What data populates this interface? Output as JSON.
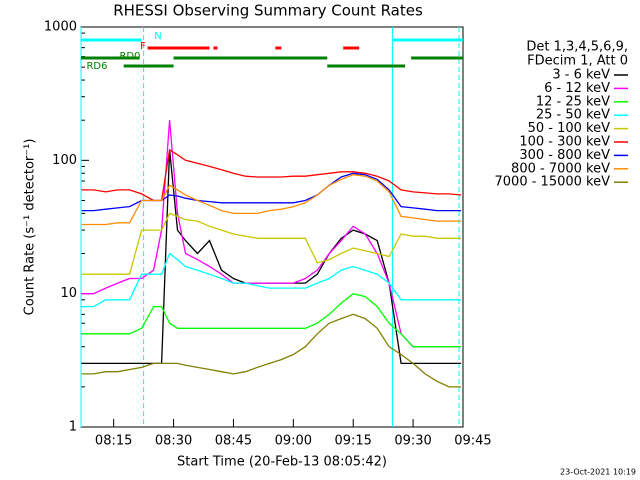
{
  "chart_data": {
    "type": "line",
    "title": "RHESSI Observing Summary Count Rates",
    "x_label": "Start Time (20-Feb-13 08:05:42)",
    "y_label": "Count Rate (s⁻¹ detector⁻¹)",
    "legend_header": [
      "Det 1,3,4,5,6,9,",
      "FDecim 1, Att 0"
    ],
    "footer": "23-Oct-2021 10:19",
    "log_y": true,
    "xlim": [
      "08:06:49",
      "09:42:30"
    ],
    "xticks": [
      "08:15",
      "08:30",
      "08:45",
      "09:00",
      "09:15",
      "09:30",
      "09:45"
    ],
    "ylim": [
      1,
      1000
    ],
    "yticks": [
      1,
      10,
      100,
      1000
    ],
    "x": [
      "08:07",
      "08:10",
      "08:13",
      "08:16",
      "08:19",
      "08:22",
      "08:25",
      "08:27",
      "08:29",
      "08:31",
      "08:33",
      "08:36",
      "08:39",
      "08:42",
      "08:45",
      "08:48",
      "08:51",
      "08:54",
      "08:57",
      "09:00",
      "09:03",
      "09:06",
      "09:09",
      "09:12",
      "09:15",
      "09:18",
      "09:21",
      "09:24",
      "09:27",
      "09:30",
      "09:33",
      "09:36",
      "09:39",
      "09:42"
    ],
    "series": [
      {
        "name": "3 - 6 keV",
        "color": "#000000",
        "values": [
          3,
          3,
          3,
          3,
          3,
          3,
          3,
          3,
          120,
          30,
          25,
          20,
          25,
          15,
          13,
          12,
          12,
          12,
          12,
          12,
          12,
          14,
          20,
          26,
          30,
          28,
          25,
          12,
          3,
          3,
          3,
          3,
          3,
          3
        ]
      },
      {
        "name": "6 - 12 keV",
        "color": "#ff00ff",
        "values": [
          10,
          10,
          11,
          12,
          13,
          13,
          15,
          30,
          200,
          40,
          20,
          18,
          16,
          14,
          12,
          12,
          12,
          12,
          12,
          12,
          13,
          15,
          20,
          25,
          32,
          28,
          20,
          12,
          5,
          4,
          4,
          4,
          4,
          4
        ]
      },
      {
        "name": "12 - 25 keV",
        "color": "#00ff00",
        "values": [
          5,
          5,
          5,
          5,
          5,
          5.5,
          8,
          8,
          6,
          5.5,
          5.5,
          5.5,
          5.5,
          5.5,
          5.5,
          5.5,
          5.5,
          5.5,
          5.5,
          5.5,
          5.5,
          6,
          7,
          8.5,
          10,
          9.5,
          8,
          6,
          5,
          4,
          4,
          4,
          4,
          4
        ]
      },
      {
        "name": "25 - 50 keV",
        "color": "#00ffff",
        "values": [
          8,
          8,
          9,
          9,
          9,
          14,
          14,
          14,
          20,
          18,
          16,
          15,
          14,
          13,
          12,
          12,
          11.5,
          11,
          11,
          11,
          11,
          12,
          13,
          15,
          16,
          15,
          14,
          12,
          9,
          9,
          9,
          9,
          9,
          9
        ]
      },
      {
        "name": "50 - 100 keV",
        "color": "#c8c800",
        "values": [
          14,
          14,
          14,
          14,
          14,
          30,
          30,
          30,
          40,
          38,
          36,
          35,
          32,
          30,
          28,
          27,
          26,
          26,
          26,
          26,
          26,
          17,
          18,
          20,
          22,
          21,
          20,
          19,
          28,
          27,
          27,
          26,
          26,
          26
        ]
      },
      {
        "name": "100 - 300 keV",
        "color": "#ff0000",
        "values": [
          60,
          60,
          58,
          60,
          60,
          56,
          50,
          50,
          120,
          110,
          100,
          95,
          90,
          85,
          80,
          76,
          75,
          75,
          75,
          76,
          76,
          78,
          80,
          82,
          82,
          80,
          76,
          70,
          60,
          58,
          57,
          56,
          56,
          55
        ]
      },
      {
        "name": "300 - 800 keV",
        "color": "#0000ff",
        "values": [
          42,
          42,
          43,
          44,
          45,
          50,
          50,
          50,
          55,
          54,
          52,
          50,
          49,
          48,
          48,
          48,
          48,
          48,
          48,
          48,
          50,
          55,
          65,
          75,
          80,
          78,
          72,
          60,
          45,
          44,
          43,
          42,
          42,
          42
        ]
      },
      {
        "name": "800 - 7000 keV",
        "color": "#ff8c00",
        "values": [
          33,
          33,
          33,
          34,
          34,
          50,
          50,
          50,
          65,
          60,
          55,
          50,
          46,
          42,
          40,
          40,
          40,
          42,
          43,
          45,
          48,
          55,
          65,
          72,
          78,
          76,
          70,
          58,
          38,
          37,
          36,
          35,
          35,
          35
        ]
      },
      {
        "name": "7000 - 15000 keV",
        "color": "#808000",
        "values": [
          2.5,
          2.5,
          2.6,
          2.6,
          2.7,
          2.8,
          3,
          3,
          3,
          3,
          2.9,
          2.8,
          2.7,
          2.6,
          2.5,
          2.6,
          2.8,
          3,
          3.2,
          3.5,
          4,
          5,
          6,
          6.5,
          7,
          6.5,
          5.5,
          4,
          3.5,
          3,
          2.5,
          2.2,
          2,
          2
        ]
      }
    ],
    "flags": [
      {
        "name": "N",
        "color": "#00ffff",
        "intervals": [
          [
            "08:06:49",
            "08:22:00"
          ],
          [
            "09:25:00",
            "09:42:30"
          ]
        ]
      },
      {
        "name": "F",
        "color": "#ff0000",
        "intervals": [
          [
            "08:23:30",
            "08:39:00"
          ],
          [
            "08:40:00",
            "08:41:00"
          ],
          [
            "08:55:30",
            "08:57:00"
          ],
          [
            "09:12:30",
            "09:16:30"
          ]
        ]
      },
      {
        "name": "RD0",
        "color": "#008000",
        "intervals": [
          [
            "08:06:49",
            "08:21:30"
          ],
          [
            "08:30:00",
            "09:08:30"
          ],
          [
            "09:29:30",
            "09:42:30"
          ]
        ]
      },
      {
        "name": "RD6",
        "color": "#008000",
        "intervals": [
          [
            "08:17:30",
            "08:30:00"
          ],
          [
            "09:08:30",
            "09:28:00"
          ]
        ]
      }
    ],
    "attenuator_lines": [
      "08:22:30",
      "09:41:30"
    ],
    "solid_lines": [
      "08:06:49",
      "09:24:50"
    ]
  }
}
